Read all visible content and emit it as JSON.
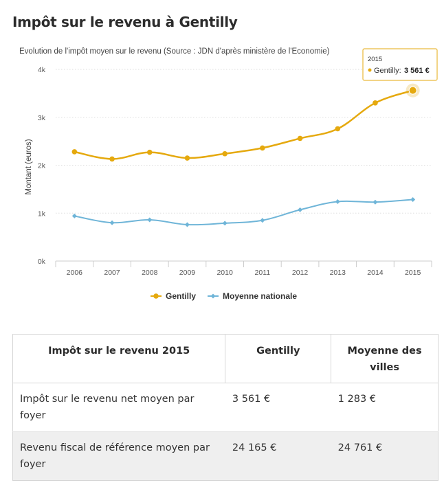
{
  "page": {
    "title": "Impôt sur le revenu à Gentilly"
  },
  "chart_data": {
    "type": "line",
    "title": "",
    "subtitle": "Evolution de l'impôt moyen sur le revenu (Source : JDN d'après ministère de l'Economie)",
    "xlabel": "",
    "ylabel": "Montant (euros)",
    "categories": [
      "2006",
      "2007",
      "2008",
      "2009",
      "2010",
      "2011",
      "2012",
      "2013",
      "2014",
      "2015"
    ],
    "ylim": [
      0,
      4000
    ],
    "yticks": [
      0,
      1000,
      2000,
      3000,
      4000
    ],
    "ytick_labels": [
      "0k",
      "1k",
      "2k",
      "3k",
      "4k"
    ],
    "grid": true,
    "legend": "bottom",
    "series": [
      {
        "name": "Gentilly",
        "color": "#e5a90e",
        "marker": "circle",
        "values": [
          2280,
          2130,
          2270,
          2150,
          2240,
          2360,
          2560,
          2760,
          3300,
          3561
        ]
      },
      {
        "name": "Moyenne nationale",
        "color": "#6fb5d8",
        "marker": "diamond",
        "values": [
          940,
          800,
          860,
          760,
          790,
          850,
          1070,
          1240,
          1230,
          1283
        ]
      }
    ],
    "tooltip": {
      "year": "2015",
      "label": "Gentilly:",
      "value": "3 561 €"
    }
  },
  "table": {
    "headers": [
      "Impôt sur le revenu 2015",
      "Gentilly",
      "Moyenne des villes"
    ],
    "rows": [
      [
        "Impôt sur le revenu net moyen par foyer",
        "3 561 €",
        "1 283 €"
      ],
      [
        "Revenu fiscal de référence moyen par foyer",
        "24 165 €",
        "24 761 €"
      ]
    ]
  }
}
